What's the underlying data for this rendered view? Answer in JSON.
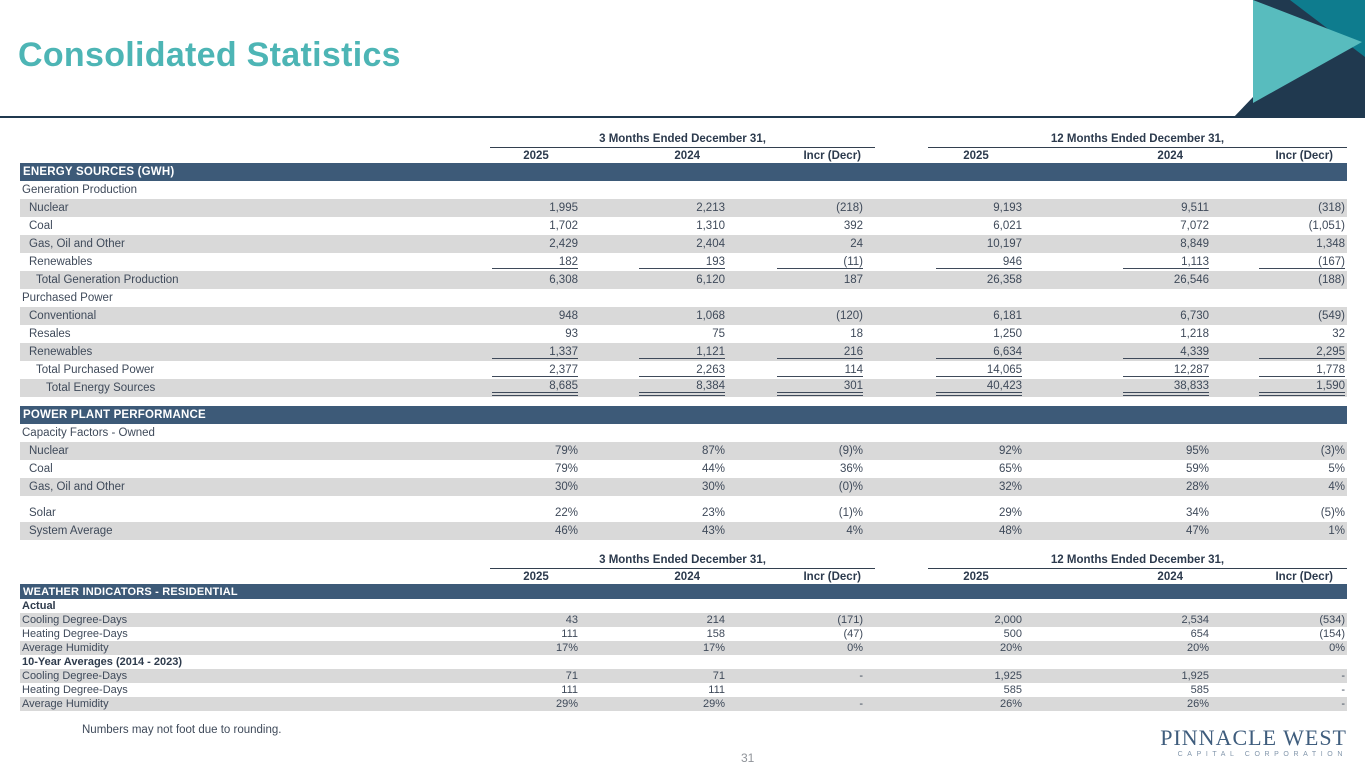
{
  "title": "Consolidated Statistics",
  "footnote": "Numbers may not foot due to rounding.",
  "page_number": "31",
  "logo": {
    "name": "PINNACLE WEST",
    "sub": "CAPITAL CORPORATION"
  },
  "colors": {
    "title_teal": "#4db5b5",
    "section_bar_navy": "#3d5a78",
    "row_gray": "#d9d9d9",
    "corner_navy": "#20394f",
    "corner_teal_light": "#58bcbe",
    "corner_teal_dark": "#0e7c8e",
    "text": "#3f4a5a"
  },
  "table_header": {
    "group_3mo": "3 Months Ended December 31,",
    "group_12mo": "12 Months Ended December 31,",
    "years": [
      "2025",
      "2024",
      "Incr (Decr)",
      "2025",
      "2024",
      "Incr (Decr)"
    ]
  },
  "sections": [
    {
      "table": 1,
      "bar": "ENERGY SOURCES (GWH)",
      "gap_before": 0,
      "rows": [
        {
          "kind": "subhead",
          "label": "Generation Production",
          "ind": 0,
          "bg": "w"
        },
        {
          "kind": "data",
          "label": "Nuclear",
          "ind": 1,
          "bg": "g",
          "v": [
            "1,995",
            "2,213",
            "(218)",
            "9,193",
            "9,511",
            "(318)"
          ]
        },
        {
          "kind": "data",
          "label": "Coal",
          "ind": 1,
          "bg": "w",
          "v": [
            "1,702",
            "1,310",
            "392",
            "6,021",
            "7,072",
            "(1,051)"
          ]
        },
        {
          "kind": "data",
          "label": "Gas, Oil and Other",
          "ind": 1,
          "bg": "g",
          "v": [
            "2,429",
            "2,404",
            "24",
            "10,197",
            "8,849",
            "1,348"
          ]
        },
        {
          "kind": "data",
          "label": "Renewables",
          "ind": 1,
          "bg": "w",
          "u": "s",
          "v": [
            "182",
            "193",
            "(11)",
            "946",
            "1,113",
            "(167)"
          ]
        },
        {
          "kind": "data",
          "label": "Total Generation Production",
          "ind": 2,
          "bg": "g",
          "v": [
            "6,308",
            "6,120",
            "187",
            "26,358",
            "26,546",
            "(188)"
          ]
        },
        {
          "kind": "subhead",
          "label": "Purchased Power",
          "ind": 0,
          "bg": "w"
        },
        {
          "kind": "data",
          "label": "Conventional",
          "ind": 1,
          "bg": "g",
          "v": [
            "948",
            "1,068",
            "(120)",
            "6,181",
            "6,730",
            "(549)"
          ]
        },
        {
          "kind": "data",
          "label": "Resales",
          "ind": 1,
          "bg": "w",
          "v": [
            "93",
            "75",
            "18",
            "1,250",
            "1,218",
            "32"
          ]
        },
        {
          "kind": "data",
          "label": "Renewables",
          "ind": 1,
          "bg": "g",
          "u": "s",
          "v": [
            "1,337",
            "1,121",
            "216",
            "6,634",
            "4,339",
            "2,295"
          ]
        },
        {
          "kind": "data",
          "label": "Total Purchased Power",
          "ind": 2,
          "bg": "w",
          "u": "s",
          "v": [
            "2,377",
            "2,263",
            "114",
            "14,065",
            "12,287",
            "1,778"
          ]
        },
        {
          "kind": "data",
          "label": "Total Energy Sources",
          "ind": 3,
          "bg": "g",
          "u": "d",
          "v": [
            "8,685",
            "8,384",
            "301",
            "40,423",
            "38,833",
            "1,590"
          ]
        }
      ]
    },
    {
      "table": 1,
      "bar": "POWER PLANT PERFORMANCE",
      "gap_before": 9,
      "rows": [
        {
          "kind": "subhead",
          "label": "Capacity Factors - Owned",
          "ind": 0,
          "bg": "w"
        },
        {
          "kind": "data",
          "label": "Nuclear",
          "ind": 1,
          "bg": "g",
          "v": [
            "79%",
            "87%",
            "(9)%",
            "92%",
            "95%",
            "(3)%"
          ]
        },
        {
          "kind": "data",
          "label": "Coal",
          "ind": 1,
          "bg": "w",
          "v": [
            "79%",
            "44%",
            "36%",
            "65%",
            "59%",
            "5%"
          ]
        },
        {
          "kind": "data",
          "label": "Gas, Oil and Other",
          "ind": 1,
          "bg": "g",
          "v": [
            "30%",
            "30%",
            "(0)%",
            "32%",
            "28%",
            "4%"
          ]
        },
        {
          "kind": "spacer",
          "h": 8
        },
        {
          "kind": "data",
          "label": "Solar",
          "ind": 1,
          "bg": "w",
          "v": [
            "22%",
            "23%",
            "(1)%",
            "29%",
            "34%",
            "(5)%"
          ]
        },
        {
          "kind": "data",
          "label": "System Average",
          "ind": 1,
          "bg": "g",
          "v": [
            "46%",
            "43%",
            "4%",
            "48%",
            "47%",
            "1%"
          ]
        }
      ]
    },
    {
      "table": 2,
      "bar": "WEATHER INDICATORS - RESIDENTIAL",
      "gap_before": 0,
      "rows": [
        {
          "kind": "boldhead",
          "label": "Actual",
          "ind": 0,
          "bg": "w"
        },
        {
          "kind": "data",
          "label": "Cooling Degree-Days",
          "ind": 0,
          "bg": "g",
          "v": [
            "43",
            "214",
            "(171)",
            "2,000",
            "2,534",
            "(534)"
          ]
        },
        {
          "kind": "data",
          "label": "Heating Degree-Days",
          "ind": 0,
          "bg": "w",
          "v": [
            "111",
            "158",
            "(47)",
            "500",
            "654",
            "(154)"
          ]
        },
        {
          "kind": "data",
          "label": "Average Humidity",
          "ind": 0,
          "bg": "g",
          "v": [
            "17%",
            "17%",
            "0%",
            "20%",
            "20%",
            "0%"
          ]
        },
        {
          "kind": "boldhead",
          "label": "10-Year Averages (2014 - 2023)",
          "ind": 0,
          "bg": "w"
        },
        {
          "kind": "data",
          "label": "Cooling Degree-Days",
          "ind": 0,
          "bg": "g",
          "v": [
            "71",
            "71",
            "-",
            "1,925",
            "1,925",
            "-"
          ]
        },
        {
          "kind": "data",
          "label": "Heating Degree-Days",
          "ind": 0,
          "bg": "w",
          "v": [
            "111",
            "111",
            "",
            "585",
            "585",
            "-"
          ]
        },
        {
          "kind": "data",
          "label": "Average Humidity",
          "ind": 0,
          "bg": "g",
          "v": [
            "29%",
            "29%",
            "-",
            "26%",
            "26%",
            "-"
          ]
        }
      ]
    }
  ]
}
